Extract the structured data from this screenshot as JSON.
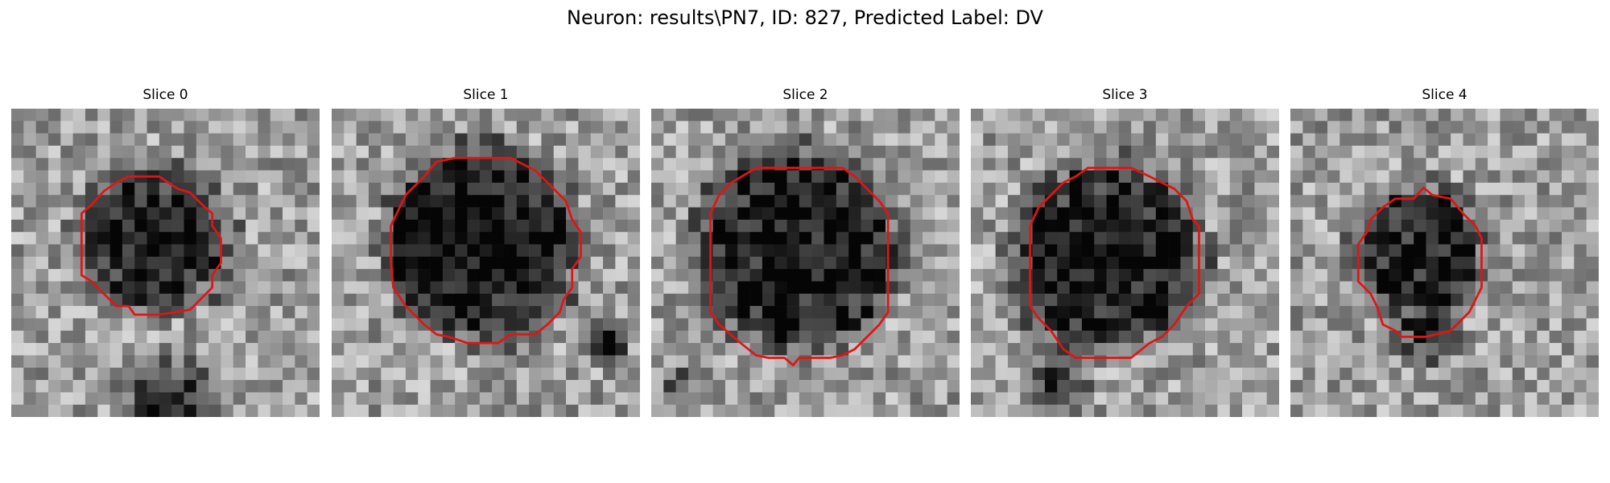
{
  "figure": {
    "title": "Neuron: results\\PN7, ID: 827, Predicted Label: DV"
  },
  "colors": {
    "contour": "#e01515",
    "background": "#ffffff"
  },
  "panels": [
    {
      "title": "Slice 0",
      "grid": 25,
      "seed": 11,
      "blob_center": [
        11.5,
        10.5
      ],
      "blob_radius": 5.6,
      "darkness": 0.55,
      "shadow": [
        13,
        24,
        5.5,
        0.6
      ],
      "contour": [
        [
          5.7,
          8.5
        ],
        [
          6.5,
          7.8
        ],
        [
          7.5,
          6.7
        ],
        [
          8.5,
          6.0
        ],
        [
          9.5,
          5.5
        ],
        [
          12,
          5.5
        ],
        [
          13.5,
          6.5
        ],
        [
          14.5,
          6.8
        ],
        [
          15.5,
          7.8
        ],
        [
          16.3,
          8.5
        ],
        [
          16.3,
          9.5
        ],
        [
          17,
          10.5
        ],
        [
          17,
          12.5
        ],
        [
          16.3,
          13.5
        ],
        [
          16.3,
          14.5
        ],
        [
          15.5,
          15.3
        ],
        [
          14.5,
          16.3
        ],
        [
          12,
          16.7
        ],
        [
          10,
          16.7
        ],
        [
          9.5,
          16
        ],
        [
          8.5,
          16
        ],
        [
          7.5,
          15
        ],
        [
          6.5,
          14
        ],
        [
          5.7,
          13.5
        ],
        [
          5.7,
          10.5
        ]
      ]
    },
    {
      "title": "Slice 1",
      "grid": 25,
      "seed": 23,
      "blob_center": [
        12.3,
        11
      ],
      "blob_radius": 7.4,
      "darkness": 0.6,
      "shadow": [
        22.5,
        19,
        2.0,
        0.7
      ],
      "contour": [
        [
          4.8,
          9.5
        ],
        [
          6,
          7
        ],
        [
          7.5,
          5.5
        ],
        [
          8.5,
          4.3
        ],
        [
          10,
          4
        ],
        [
          14.5,
          4
        ],
        [
          15.5,
          4.5
        ],
        [
          16.5,
          5
        ],
        [
          17.5,
          6
        ],
        [
          19,
          7.5
        ],
        [
          19.5,
          9
        ],
        [
          20.2,
          10
        ],
        [
          20.2,
          12
        ],
        [
          19.5,
          13
        ],
        [
          19.5,
          14.5
        ],
        [
          18.8,
          15.5
        ],
        [
          18.5,
          16.5
        ],
        [
          17.5,
          17.5
        ],
        [
          16.5,
          18.3
        ],
        [
          14.5,
          18.3
        ],
        [
          13.5,
          19
        ],
        [
          11,
          19
        ],
        [
          9.5,
          18.5
        ],
        [
          8.5,
          18.3
        ],
        [
          7.5,
          17.5
        ],
        [
          6,
          16
        ],
        [
          5,
          14.5
        ],
        [
          4.8,
          12.5
        ]
      ]
    },
    {
      "title": "Slice 2",
      "grid": 25,
      "seed": 37,
      "blob_center": [
        12,
        11.5
      ],
      "blob_radius": 7.6,
      "darkness": 0.6,
      "shadow": [
        2,
        22,
        1.8,
        0.4
      ],
      "contour": [
        [
          4.8,
          8.5
        ],
        [
          5.5,
          7
        ],
        [
          6.5,
          6
        ],
        [
          8.5,
          4.8
        ],
        [
          15.5,
          4.8
        ],
        [
          16.5,
          5.5
        ],
        [
          17.5,
          6.5
        ],
        [
          18.5,
          7.5
        ],
        [
          19.2,
          8.5
        ],
        [
          19.2,
          16.5
        ],
        [
          18.5,
          17.5
        ],
        [
          16.5,
          19.5
        ],
        [
          15.5,
          20
        ],
        [
          14.5,
          20.2
        ],
        [
          12,
          20.2
        ],
        [
          11.5,
          20.8
        ],
        [
          10.8,
          20.2
        ],
        [
          9.5,
          20.2
        ],
        [
          8.5,
          20
        ],
        [
          7,
          18.8
        ],
        [
          5.5,
          17.5
        ],
        [
          4.8,
          16.5
        ]
      ]
    },
    {
      "title": "Slice 3",
      "grid": 25,
      "seed": 51,
      "blob_center": [
        11,
        12
      ],
      "blob_radius": 7.2,
      "darkness": 0.58,
      "shadow": [
        7,
        22.5,
        3.5,
        0.6
      ],
      "contour": [
        [
          4.8,
          9.5
        ],
        [
          5.5,
          8
        ],
        [
          6.5,
          7
        ],
        [
          7.5,
          6
        ],
        [
          8.5,
          5.5
        ],
        [
          9.5,
          4.8
        ],
        [
          13,
          4.8
        ],
        [
          14.5,
          5.5
        ],
        [
          15.5,
          6
        ],
        [
          16.5,
          6.5
        ],
        [
          17.5,
          7.5
        ],
        [
          18,
          9
        ],
        [
          18.5,
          9.5
        ],
        [
          18.5,
          15
        ],
        [
          17.5,
          16
        ],
        [
          16.5,
          17.5
        ],
        [
          15.5,
          18.5
        ],
        [
          14.5,
          19
        ],
        [
          13,
          20.2
        ],
        [
          8.5,
          20.2
        ],
        [
          7.5,
          19.5
        ],
        [
          6.5,
          18
        ],
        [
          5.5,
          17
        ],
        [
          4.8,
          16
        ]
      ]
    },
    {
      "title": "Slice 4",
      "grid": 25,
      "seed": 67,
      "blob_center": [
        10.5,
        11.5
      ],
      "blob_radius": 4.8,
      "darkness": 0.55,
      "shadow": [
        11,
        18.5,
        3.5,
        0.5
      ],
      "contour": [
        [
          5.5,
          11
        ],
        [
          6.2,
          10
        ],
        [
          6.5,
          9
        ],
        [
          7.5,
          8
        ],
        [
          8.5,
          7.3
        ],
        [
          10,
          7.3
        ],
        [
          10.8,
          6.4
        ],
        [
          11.5,
          7
        ],
        [
          13,
          7.3
        ],
        [
          14,
          8.5
        ],
        [
          15,
          9.5
        ],
        [
          15.5,
          10.5
        ],
        [
          15.5,
          14.5
        ],
        [
          15,
          15.5
        ],
        [
          14.5,
          16.5
        ],
        [
          13.5,
          17.5
        ],
        [
          13,
          18
        ],
        [
          11,
          18.5
        ],
        [
          9,
          18.5
        ],
        [
          8.5,
          18
        ],
        [
          7.5,
          17.5
        ],
        [
          7,
          16
        ],
        [
          6.5,
          15
        ],
        [
          5.5,
          14
        ]
      ]
    }
  ]
}
